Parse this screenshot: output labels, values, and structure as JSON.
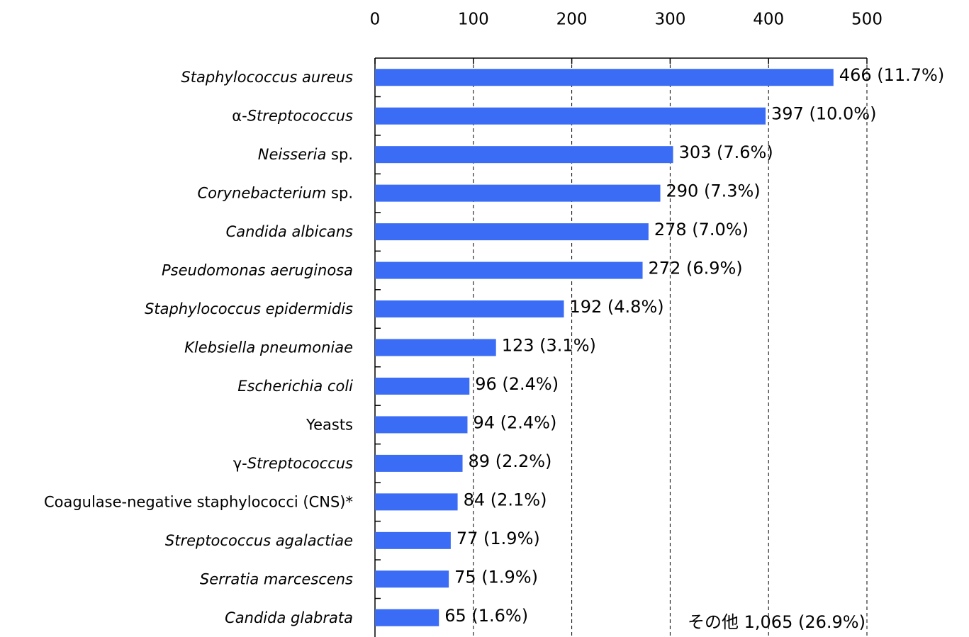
{
  "chart_data": {
    "type": "bar",
    "orientation": "horizontal",
    "categories": [
      [
        {
          "text": "Staphylococcus aureus",
          "italic": true
        }
      ],
      [
        {
          "text": "α-",
          "italic": false
        },
        {
          "text": "Streptococcus",
          "italic": true
        }
      ],
      [
        {
          "text": "Neisseria",
          "italic": true
        },
        {
          "text": " sp.",
          "italic": false
        }
      ],
      [
        {
          "text": "Corynebacterium",
          "italic": true
        },
        {
          "text": " sp.",
          "italic": false
        }
      ],
      [
        {
          "text": "Candida albicans",
          "italic": true
        }
      ],
      [
        {
          "text": "Pseudomonas aeruginosa",
          "italic": true
        }
      ],
      [
        {
          "text": "Staphylococcus epidermidis",
          "italic": true
        }
      ],
      [
        {
          "text": "Klebsiella pneumoniae",
          "italic": true
        }
      ],
      [
        {
          "text": "Escherichia coli",
          "italic": true
        }
      ],
      [
        {
          "text": "Yeasts",
          "italic": false
        }
      ],
      [
        {
          "text": "γ-",
          "italic": false
        },
        {
          "text": "Streptococcus",
          "italic": true
        }
      ],
      [
        {
          "text": "Coagulase-negative staphylococci (CNS)*",
          "italic": false
        }
      ],
      [
        {
          "text": "Streptococcus agalactiae",
          "italic": true
        }
      ],
      [
        {
          "text": "Serratia marcescens",
          "italic": true
        }
      ],
      [
        {
          "text": "Candida glabrata",
          "italic": true
        }
      ]
    ],
    "values": [
      466,
      397,
      303,
      290,
      278,
      272,
      192,
      123,
      96,
      94,
      89,
      84,
      77,
      75,
      65
    ],
    "value_labels": [
      "466 (11.7%)",
      "397 (10.0%)",
      "303 (7.6%)",
      "290 (7.3%)",
      "278 (7.0%)",
      "272 (6.9%)",
      "192 (4.8%)",
      "123 (3.1%)",
      "96 (2.4%)",
      "94 (2.4%)",
      "89 (2.2%)",
      "84 (2.1%)",
      "77 (1.9%)",
      "75 (1.9%)",
      "65 (1.6%)"
    ],
    "color": "#3b6cf5",
    "xlim": [
      0,
      500
    ],
    "xticks": [
      0,
      100,
      200,
      300,
      400,
      500
    ],
    "grid": true,
    "annotation": "その他 1,065 (26.9%)"
  }
}
